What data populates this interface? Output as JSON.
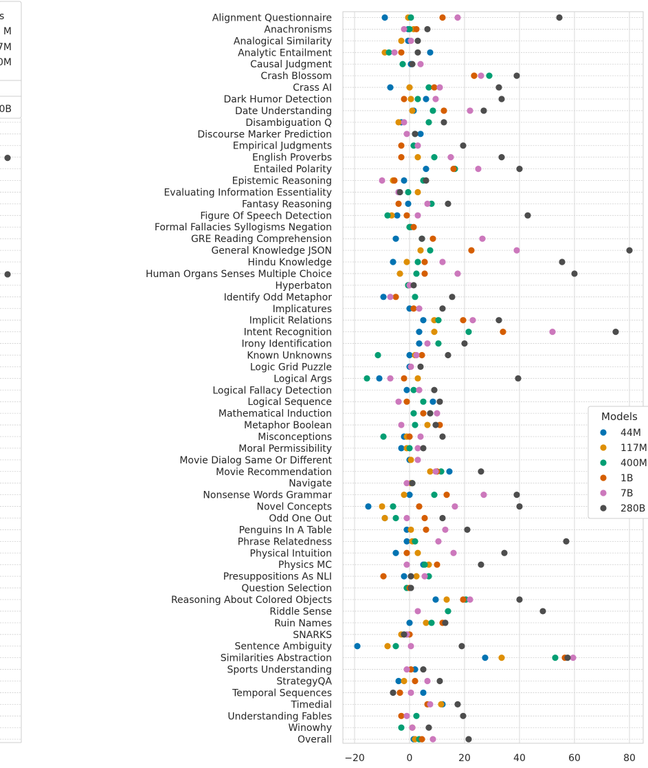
{
  "chart_data": [
    {
      "type": "scatter",
      "title": "",
      "note": "partially visible panel cropped at left edge",
      "legend_title_fragment": "s",
      "legend_entries_fragments": [
        "M",
        "7M",
        "0M",
        "0B"
      ],
      "visible_points": [
        {
          "row_index": 12,
          "series": "280B"
        },
        {
          "row_index": 22,
          "series": "280B"
        }
      ]
    },
    {
      "type": "scatter",
      "title": "",
      "xlabel": "",
      "ylabel": "",
      "xlim": [
        -25,
        85
      ],
      "xticks": [
        -20,
        0,
        20,
        40,
        60,
        80
      ],
      "grid": true,
      "legend": {
        "title": "Models",
        "placement": "right"
      },
      "series_names": [
        "44M",
        "117M",
        "400M",
        "1B",
        "7B",
        "280B"
      ],
      "colors": {
        "44M": "#0173b2",
        "117M": "#de8f05",
        "400M": "#029e73",
        "1B": "#d55e00",
        "7B": "#cc78bc",
        "280B": "#4d4d4d"
      },
      "categories": [
        "Alignment Questionnaire",
        "Anachronisms",
        "Analogical Similarity",
        "Analytic Entailment",
        "Causal Judgment",
        "Crash Blossom",
        "Crass AI",
        "Dark Humor Detection",
        "Date Understanding",
        "Disambiguation Q",
        "Discourse Marker Prediction",
        "Empirical Judgments",
        "English Proverbs",
        "Entailed Polarity",
        "Epistemic Reasoning",
        "Evaluating Information Essentiality",
        "Fantasy Reasoning",
        "Figure Of Speech Detection",
        "Formal Fallacies Syllogisms Negation",
        "GRE Reading Comprehension",
        "General Knowledge JSON",
        "Hindu Knowledge",
        "Human Organs Senses Multiple Choice",
        "Hyperbaton",
        "Identify Odd Metaphor",
        "Implicatures",
        "Implicit Relations",
        "Intent Recognition",
        "Irony Identification",
        "Known Unknowns",
        "Logic Grid Puzzle",
        "Logical Args",
        "Logical Fallacy Detection",
        "Logical Sequence",
        "Mathematical Induction",
        "Metaphor Boolean",
        "Misconceptions",
        "Moral Permissibility",
        "Movie Dialog Same Or Different",
        "Movie Recommendation",
        "Navigate",
        "Nonsense Words Grammar",
        "Novel Concepts",
        "Odd One Out",
        "Penguins In A Table",
        "Phrase Relatedness",
        "Physical Intuition",
        "Physics MC",
        "Presuppositions As NLI",
        "Question Selection",
        "Reasoning About Colored Objects",
        "Riddle Sense",
        "Ruin Names",
        "SNARKS",
        "Sentence Ambiguity",
        "Similarities Abstraction",
        "Sports Understanding",
        "StrategyQA",
        "Temporal Sequences",
        "Timedial",
        "Understanding Fables",
        "Winowhy",
        "Overall"
      ],
      "series": [
        {
          "name": "44M",
          "values": [
            -9,
            -0.5,
            -0.5,
            7.5,
            0.5,
            null,
            -7,
            6,
            1.5,
            -3,
            4,
            null,
            null,
            6,
            -2,
            -4,
            -0.5,
            -4.5,
            0.5,
            -5,
            null,
            -6,
            null,
            -0.5,
            -9.5,
            0,
            5,
            3.5,
            3.5,
            0,
            0,
            -11,
            -1,
            8.5,
            null,
            null,
            -2,
            -3,
            0,
            14.5,
            null,
            0,
            -15,
            -9,
            -1,
            -1,
            -5,
            5,
            -2,
            null,
            9.5,
            null,
            0,
            -1,
            -19,
            27.5,
            2,
            -4,
            5,
            12,
            null,
            null,
            1.5
          ]
        },
        {
          "name": "117M",
          "values": [
            -0.5,
            1.5,
            -3,
            -9,
            null,
            23.5,
            0,
            0.5,
            1,
            -4,
            null,
            null,
            3,
            null,
            -6,
            3,
            null,
            -6.5,
            0,
            null,
            4,
            -1,
            -3.5,
            -0.5,
            null,
            null,
            9,
            9,
            null,
            2,
            null,
            3,
            null,
            null,
            null,
            6.5,
            -1,
            -1,
            0.5,
            7.5,
            0.5,
            -2,
            -10,
            -9,
            0.5,
            1,
            3,
            7,
            2.5,
            null,
            13.5,
            null,
            6,
            -3,
            -8,
            33.5,
            null,
            -2,
            null,
            11.5,
            null,
            1,
            2
          ]
        },
        {
          "name": "400M",
          "values": [
            0.5,
            0,
            null,
            -7.5,
            -2.5,
            29,
            7,
            3,
            8.5,
            7,
            2,
            1.5,
            9,
            16.5,
            5,
            -0.5,
            8,
            -8,
            0,
            4.5,
            7.5,
            3,
            2.5,
            -0.5,
            2,
            null,
            10.5,
            21.5,
            10.5,
            -11.5,
            null,
            -15.5,
            1.5,
            5,
            1.5,
            2,
            -9.5,
            0,
            null,
            11.5,
            1,
            9,
            -6,
            -5,
            null,
            2,
            null,
            5.5,
            7,
            -1,
            20.5,
            14,
            8,
            -2,
            -5,
            53,
            null,
            null,
            null,
            null,
            2.5,
            -3,
            3.5
          ]
        },
        {
          "name": "1B",
          "values": [
            12,
            2.5,
            null,
            -3,
            null,
            23.5,
            9,
            -2,
            12.5,
            null,
            null,
            -3,
            -3,
            16,
            -5.5,
            null,
            -4,
            -1,
            1.5,
            8.5,
            22.5,
            5.5,
            5.5,
            null,
            -5,
            1.5,
            19.5,
            34,
            null,
            4.5,
            null,
            -2,
            null,
            -1,
            5,
            11,
            0,
            null,
            null,
            10,
            null,
            13.5,
            3.5,
            5.5,
            6,
            null,
            -1,
            10,
            -9.5,
            0,
            19.5,
            null,
            12,
            0,
            null,
            56.5,
            0.5,
            2,
            -3.5,
            6.5,
            -3,
            null,
            4.5
          ]
        },
        {
          "name": "7B",
          "values": [
            17.5,
            -2,
            0.5,
            -5.5,
            4,
            26,
            11,
            9.5,
            22,
            -2,
            -1,
            3,
            15,
            25,
            -10,
            -4,
            6.5,
            3,
            null,
            26.5,
            39,
            12,
            17.5,
            0,
            -7,
            3.5,
            23,
            52,
            6.5,
            2.5,
            0.5,
            -7,
            3.5,
            -4,
            10,
            -3,
            4,
            3,
            3,
            9.5,
            -1,
            27,
            16.5,
            -1,
            13,
            10.5,
            16,
            -1,
            5.5,
            null,
            22,
            3,
            null,
            -1,
            0.5,
            59.5,
            -1,
            6.5,
            0.5,
            7.5,
            -1,
            1,
            8.5
          ]
        },
        {
          "name": "280B",
          "values": [
            54.5,
            6.5,
            3,
            3,
            1,
            39,
            32.5,
            33.5,
            27,
            12.5,
            2,
            19.5,
            33.5,
            40,
            6,
            -3.5,
            14,
            43,
            null,
            4.5,
            80,
            55.5,
            60,
            1.5,
            15.5,
            12,
            32.5,
            75,
            20,
            14,
            4,
            39.5,
            9,
            11,
            7.5,
            9.5,
            12,
            5,
            null,
            26,
            1,
            39,
            40,
            12,
            21,
            57,
            34.5,
            26,
            0.5,
            0.5,
            40,
            48.5,
            13,
            -2,
            19,
            57.5,
            5,
            11,
            -6,
            17.5,
            19.5,
            7,
            21.5
          ]
        }
      ]
    }
  ]
}
